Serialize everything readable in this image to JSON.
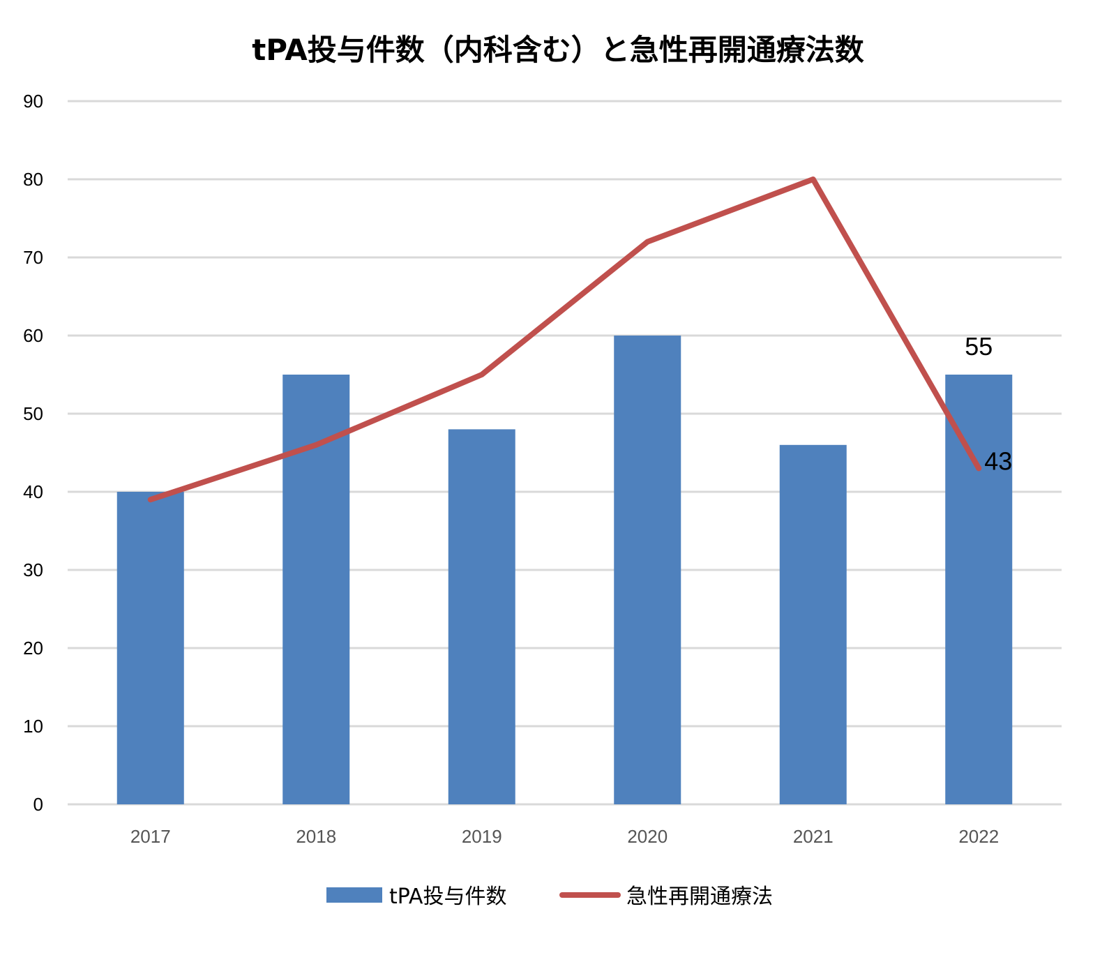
{
  "chart_data": {
    "type": "bar+line",
    "title": "tPA投与件数（内科含む）と急性再開通療法数",
    "categories": [
      "2017",
      "2018",
      "2019",
      "2020",
      "2021",
      "2022"
    ],
    "ylim": [
      0,
      90
    ],
    "yticks": [
      "0",
      "10",
      "20",
      "30",
      "40",
      "50",
      "60",
      "70",
      "80",
      "90"
    ],
    "grid": true,
    "legend_position": "bottom",
    "series": [
      {
        "name": "tPA投与件数",
        "type": "bar",
        "color": "#4F81BD",
        "values": [
          40,
          55,
          48,
          60,
          46,
          55
        ]
      },
      {
        "name": "急性再開通療法",
        "type": "line",
        "color": "#C0504D",
        "values": [
          39,
          46,
          55,
          72,
          80,
          43
        ]
      }
    ],
    "data_labels": [
      {
        "series": "tPA投与件数",
        "category": "2022",
        "text": "55"
      },
      {
        "series": "急性再開通療法",
        "category": "2022",
        "text": "43"
      }
    ]
  }
}
